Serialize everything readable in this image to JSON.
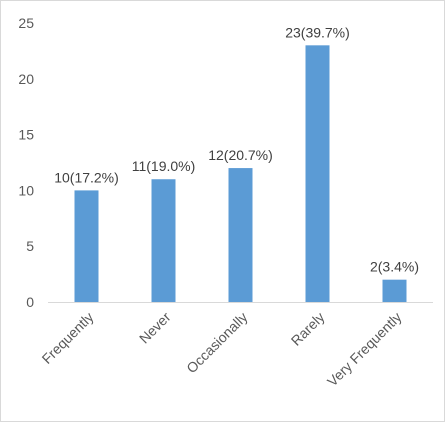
{
  "chart_data": {
    "type": "bar",
    "categories": [
      "Frequently",
      "Never",
      "Occasionally",
      "Rarely",
      "Very Frequently"
    ],
    "values": [
      10,
      11,
      12,
      23,
      2
    ],
    "data_labels": [
      "10(17.2%)",
      "11(19.0%)",
      "12(20.7%)",
      "23(39.7%)",
      "2(3.4%)"
    ],
    "title": "",
    "xlabel": "",
    "ylabel": "",
    "ylim": [
      0,
      25
    ],
    "yticks": [
      0,
      5,
      10,
      15,
      20,
      25
    ],
    "grid": false,
    "legend": "none",
    "colors": {
      "bar": "#5b9bd5",
      "axis": "#d9d9d9"
    }
  }
}
